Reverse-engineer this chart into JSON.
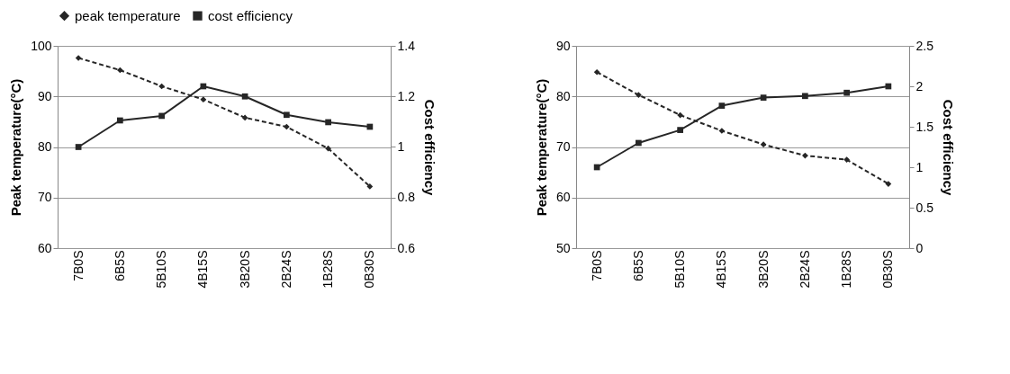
{
  "chart_data": [
    {
      "type": "line",
      "categories": [
        "7B0S",
        "6B5S",
        "5B10S",
        "4B15S",
        "3B20S",
        "2B24S",
        "1B28S",
        "0B30S"
      ],
      "ylabel": "Peak temperature(°C)",
      "y2label": "Cost efficiency",
      "ylim": [
        60,
        100
      ],
      "yticks": [
        60,
        70,
        80,
        90,
        100
      ],
      "y2lim": [
        0.6,
        1.4
      ],
      "y2ticks": [
        0.6,
        0.8,
        1,
        1.2,
        1.4
      ],
      "grid": "y",
      "legend": "top",
      "series": [
        {
          "name": "peak temperature",
          "color": "#262626",
          "marker": "diamond",
          "line_style": "dashed",
          "values": [
            97.6,
            95.2,
            92.0,
            89.4,
            85.8,
            84.0,
            79.7,
            72.2
          ]
        },
        {
          "name": "cost efficiency",
          "color": "#262626",
          "marker": "square",
          "line_style": "solid",
          "axis": "y2",
          "values": [
            1.0,
            1.105,
            1.123,
            1.24,
            1.2,
            1.127,
            1.098,
            1.08
          ]
        }
      ]
    },
    {
      "type": "line",
      "categories": [
        "7B0S",
        "6B5S",
        "5B10S",
        "4B15S",
        "3B20S",
        "2B24S",
        "1B28S",
        "0B30S"
      ],
      "ylabel": "Peak temperature(°C)",
      "y2label": "Cost efficiency",
      "ylim": [
        50,
        90
      ],
      "yticks": [
        50,
        60,
        70,
        80,
        90
      ],
      "y2lim": [
        0,
        2.5
      ],
      "y2ticks": [
        0,
        0.5,
        1,
        1.5,
        2,
        2.5
      ],
      "grid": "y",
      "legend": "top",
      "series": [
        {
          "name": "peak temperature",
          "color": "#262626",
          "marker": "diamond",
          "line_style": "dashed",
          "values": [
            84.8,
            80.3,
            76.3,
            73.2,
            70.5,
            68.3,
            67.5,
            62.7
          ]
        },
        {
          "name": "cost efficiency",
          "color": "#262626",
          "marker": "square",
          "line_style": "solid",
          "axis": "y2",
          "values": [
            1.0,
            1.3,
            1.46,
            1.76,
            1.86,
            1.88,
            1.92,
            2.0
          ]
        }
      ]
    }
  ]
}
